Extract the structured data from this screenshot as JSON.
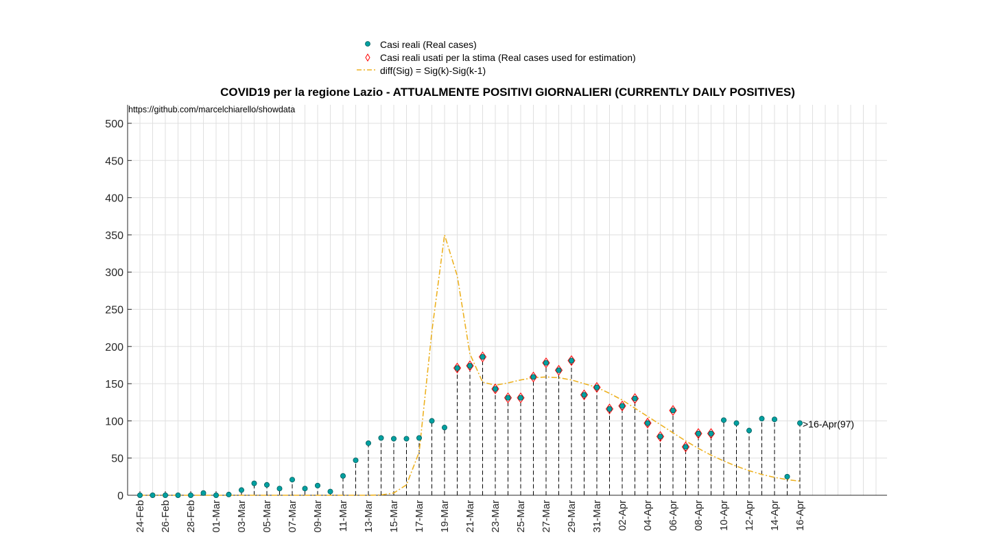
{
  "chart_data": {
    "type": "scatter",
    "title": "COVID19 per la regione Lazio - ATTUALMENTE POSITIVI GIORNALIERI (CURRENTLY DAILY POSITIVES)",
    "source_text": "https://github.com/marcelchiarello/showdata",
    "annotation": ">16-Apr(97)",
    "ylim": [
      0,
      520
    ],
    "yticks": [
      0,
      50,
      100,
      150,
      200,
      250,
      300,
      350,
      400,
      450,
      500
    ],
    "xtick_labels": [
      "24-Feb",
      "26-Feb",
      "28-Feb",
      "01-Mar",
      "03-Mar",
      "05-Mar",
      "07-Mar",
      "09-Mar",
      "11-Mar",
      "13-Mar",
      "15-Mar",
      "17-Mar",
      "19-Mar",
      "21-Mar",
      "23-Mar",
      "25-Mar",
      "27-Mar",
      "29-Mar",
      "31-Mar",
      "02-Apr",
      "04-Apr",
      "06-Apr",
      "08-Apr",
      "10-Apr",
      "12-Apr",
      "14-Apr",
      "16-Apr"
    ],
    "dates": [
      "24-Feb",
      "25-Feb",
      "26-Feb",
      "27-Feb",
      "28-Feb",
      "29-Feb",
      "01-Mar",
      "02-Mar",
      "03-Mar",
      "04-Mar",
      "05-Mar",
      "06-Mar",
      "07-Mar",
      "08-Mar",
      "09-Mar",
      "10-Mar",
      "11-Mar",
      "12-Mar",
      "13-Mar",
      "14-Mar",
      "15-Mar",
      "16-Mar",
      "17-Mar",
      "18-Mar",
      "19-Mar",
      "20-Mar",
      "21-Mar",
      "22-Mar",
      "23-Mar",
      "24-Mar",
      "25-Mar",
      "26-Mar",
      "27-Mar",
      "28-Mar",
      "29-Mar",
      "30-Mar",
      "31-Mar",
      "01-Apr",
      "02-Apr",
      "03-Apr",
      "04-Apr",
      "05-Apr",
      "06-Apr",
      "07-Apr",
      "08-Apr",
      "09-Apr",
      "10-Apr",
      "11-Apr",
      "12-Apr",
      "13-Apr",
      "14-Apr",
      "15-Apr",
      "16-Apr"
    ],
    "legend": [
      {
        "label": "Casi reali (Real cases)",
        "marker": "circle",
        "color": "#00a0a0"
      },
      {
        "label": "Casi reali usati per la stima (Real cases used for estimation)",
        "marker": "diamond",
        "color": "#ff0000"
      },
      {
        "label": "diff(Sig) = Sig(k)-Sig(k-1)",
        "marker": "dashdot",
        "color": "#edb120"
      }
    ],
    "series": [
      {
        "name": "Casi reali (Real cases)",
        "values": [
          0,
          0,
          0,
          0,
          0,
          3,
          0,
          1,
          7,
          16,
          14,
          9,
          21,
          9,
          13,
          5,
          26,
          47,
          70,
          77,
          76,
          76,
          77,
          100,
          91,
          171,
          174,
          186,
          143,
          131,
          131,
          159,
          178,
          168,
          181,
          135,
          145,
          116,
          120,
          130,
          97,
          79,
          114,
          65,
          83,
          83,
          101,
          97,
          87,
          103,
          102,
          25,
          97
        ]
      },
      {
        "name": "Casi reali usati per la stima (Real cases used for estimation)",
        "values": [
          null,
          null,
          null,
          null,
          null,
          null,
          null,
          null,
          null,
          null,
          null,
          null,
          null,
          null,
          null,
          null,
          null,
          null,
          null,
          null,
          null,
          null,
          null,
          null,
          null,
          171,
          174,
          186,
          143,
          131,
          131,
          159,
          178,
          168,
          181,
          135,
          145,
          116,
          120,
          130,
          97,
          79,
          114,
          65,
          83,
          83,
          null,
          null,
          null,
          null,
          null,
          null,
          null
        ]
      },
      {
        "name": "diff(Sig) = Sig(k)-Sig(k-1)",
        "values": [
          0,
          0,
          0,
          0,
          0,
          0,
          0,
          0,
          0,
          0,
          0,
          0,
          0,
          0,
          0,
          0,
          0,
          0,
          0,
          0.5,
          3,
          14,
          58,
          220,
          350,
          295,
          190,
          152,
          148,
          151,
          155,
          158,
          159,
          158,
          155,
          150,
          145,
          137,
          128,
          117,
          106,
          95,
          84,
          73,
          63,
          54,
          46,
          39,
          33,
          28,
          24,
          21,
          19
        ]
      }
    ],
    "colors": {
      "real": "#00a0a0",
      "estimation": "#ff0000",
      "fit": "#edb120",
      "grid": "#dfdfdf",
      "stem": "#000000"
    },
    "grid": true,
    "legend_position": "top-center"
  }
}
